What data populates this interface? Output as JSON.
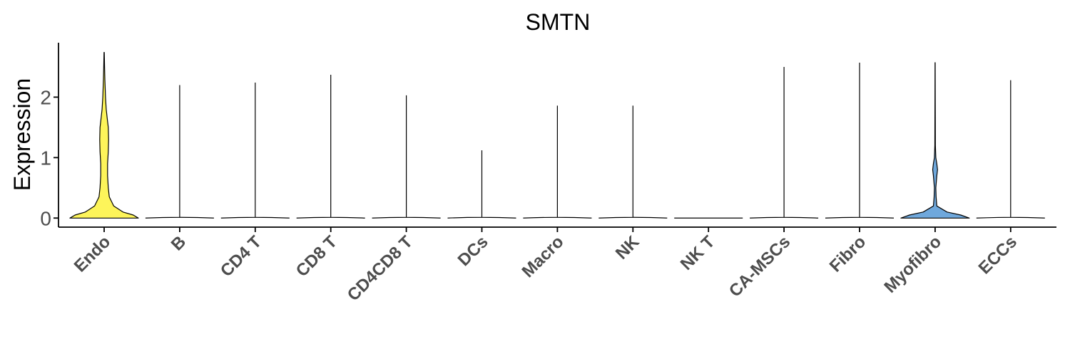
{
  "chart_data": {
    "type": "violin",
    "title": "SMTN",
    "xlabel": "",
    "ylabel": "Expression",
    "ylim": [
      -0.15,
      2.9
    ],
    "yticks": [
      0,
      1,
      2
    ],
    "grid": false,
    "legend": "none",
    "categories": [
      "Endo",
      "B",
      "CD4 T",
      "CD8 T",
      "CD4CD8 T",
      "DCs",
      "Macro",
      "NK",
      "NK T",
      "CA-MSCs",
      "Fibro",
      "Myofibro",
      "ECCs"
    ],
    "max_values": [
      2.74,
      2.2,
      2.24,
      2.37,
      2.03,
      1.12,
      1.86,
      1.86,
      0.0,
      2.5,
      2.57,
      2.57,
      2.28
    ],
    "fill_colors": [
      "#FDF45A",
      "#ffffff",
      "#ffffff",
      "#ffffff",
      "#ffffff",
      "#ffffff",
      "#ffffff",
      "#ffffff",
      "#ffffff",
      "#ffffff",
      "#ffffff",
      "#6FA8DC",
      "#ffffff"
    ],
    "shapes": {
      "Endo": [
        [
          0.0,
          1.0
        ],
        [
          0.05,
          0.85
        ],
        [
          0.1,
          0.55
        ],
        [
          0.2,
          0.28
        ],
        [
          0.35,
          0.15
        ],
        [
          0.5,
          0.12
        ],
        [
          0.7,
          0.1
        ],
        [
          0.9,
          0.1
        ],
        [
          1.1,
          0.12
        ],
        [
          1.3,
          0.13
        ],
        [
          1.5,
          0.12
        ],
        [
          1.65,
          0.09
        ],
        [
          1.8,
          0.06
        ],
        [
          2.0,
          0.04
        ],
        [
          2.3,
          0.02
        ],
        [
          2.5,
          0.012
        ],
        [
          2.74,
          0.005
        ]
      ],
      "Myofibro": [
        [
          0.0,
          1.0
        ],
        [
          0.05,
          0.75
        ],
        [
          0.1,
          0.35
        ],
        [
          0.2,
          0.05
        ],
        [
          0.35,
          0.03
        ],
        [
          0.5,
          0.02
        ],
        [
          0.7,
          0.05
        ],
        [
          0.8,
          0.07
        ],
        [
          0.9,
          0.05
        ],
        [
          1.0,
          0.02
        ],
        [
          1.2,
          0.008
        ],
        [
          1.6,
          0.006
        ],
        [
          2.0,
          0.004
        ],
        [
          2.57,
          0.003
        ]
      ]
    }
  }
}
